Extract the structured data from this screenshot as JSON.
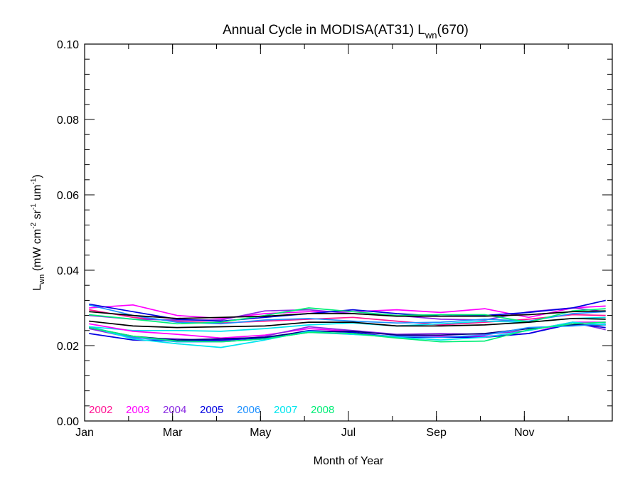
{
  "chart_data": {
    "type": "line",
    "title": "Annual Cycle in MODISA(AT31) L",
    "title_sub": "wn",
    "title_suffix": "(670)",
    "xlabel": "Month of Year",
    "ylabel_parts": [
      "L",
      "wn",
      " (mW cm",
      "-2",
      " sr",
      "-1",
      " um",
      "-1",
      ")"
    ],
    "xlim": [
      0,
      12
    ],
    "ylim": [
      0,
      0.1
    ],
    "x_ticks": [
      {
        "value": 0,
        "label": "Jan"
      },
      {
        "value": 2,
        "label": "Mar"
      },
      {
        "value": 4,
        "label": "May"
      },
      {
        "value": 6,
        "label": "Jul"
      },
      {
        "value": 8,
        "label": "Sep"
      },
      {
        "value": 10,
        "label": "Nov"
      }
    ],
    "y_ticks": [
      {
        "value": 0.0,
        "label": "0.00"
      },
      {
        "value": 0.02,
        "label": "0.02"
      },
      {
        "value": 0.04,
        "label": "0.04"
      },
      {
        "value": 0.06,
        "label": "0.06"
      },
      {
        "value": 0.08,
        "label": "0.08"
      },
      {
        "value": 0.1,
        "label": "0.10"
      }
    ],
    "grid": false,
    "legend_position": "bottom-left",
    "x": [
      0.1,
      1.1,
      2.1,
      3.1,
      4.1,
      5.1,
      6.1,
      7.1,
      8.1,
      9.1,
      10.1,
      11.1,
      11.85
    ],
    "series": [
      {
        "name": "2002",
        "color": "#ff1493",
        "values": [
          0.0295,
          0.0275,
          0.0265,
          0.026,
          0.0265,
          0.027,
          0.0275,
          0.0265,
          0.0255,
          0.0262,
          0.027,
          0.0282,
          0.028
        ]
      },
      {
        "name": "2003",
        "color": "#ff00ff",
        "values": [
          0.03,
          0.0308,
          0.028,
          0.0272,
          0.0285,
          0.029,
          0.029,
          0.0295,
          0.0288,
          0.0298,
          0.0275,
          0.03,
          0.0305
        ]
      },
      {
        "name": "2004",
        "color": "#8a2be2",
        "values": [
          0.028,
          0.027,
          0.0268,
          0.0268,
          0.0292,
          0.0295,
          0.0285,
          0.028,
          0.027,
          0.0268,
          0.029,
          0.03,
          0.029
        ]
      },
      {
        "name": "2005",
        "color": "#0000e0",
        "values": [
          0.031,
          0.029,
          0.027,
          0.0265,
          0.0275,
          0.0285,
          0.0295,
          0.0285,
          0.0278,
          0.028,
          0.0288,
          0.03,
          0.032
        ]
      },
      {
        "name": "2006",
        "color": "#1e90ff",
        "values": [
          0.0308,
          0.028,
          0.0262,
          0.0258,
          0.0268,
          0.0272,
          0.0265,
          0.026,
          0.0262,
          0.027,
          0.0265,
          0.0285,
          0.029
        ]
      },
      {
        "name": "2007",
        "color": "#00e5ee",
        "values": [
          0.025,
          0.024,
          0.024,
          0.0238,
          0.0245,
          0.0255,
          0.026,
          0.0252,
          0.0258,
          0.0265,
          0.0262,
          0.0272,
          0.0275
        ]
      },
      {
        "name": "2008",
        "color": "#00ee76",
        "values": [
          0.0282,
          0.027,
          0.0258,
          0.0262,
          0.028,
          0.03,
          0.029,
          0.028,
          0.0282,
          0.0282,
          0.0262,
          0.0292,
          0.0298
        ]
      },
      {
        "name": "",
        "color": "#ff00ff",
        "values": [
          0.0258,
          0.0238,
          0.023,
          0.022,
          0.0228,
          0.0245,
          0.0238,
          0.0228,
          0.0225,
          0.0225,
          0.0232,
          0.0262,
          0.0262
        ]
      },
      {
        "name": "",
        "color": "#8a2be2",
        "values": [
          0.0245,
          0.022,
          0.0218,
          0.0212,
          0.0225,
          0.025,
          0.024,
          0.023,
          0.0232,
          0.023,
          0.024,
          0.0262,
          0.0242
        ]
      },
      {
        "name": "",
        "color": "#0000e0",
        "values": [
          0.0232,
          0.0215,
          0.0212,
          0.0215,
          0.022,
          0.024,
          0.0235,
          0.0222,
          0.0222,
          0.0222,
          0.0232,
          0.0258,
          0.0248
        ]
      },
      {
        "name": "",
        "color": "#000080",
        "values": [
          0.0248,
          0.0225,
          0.0215,
          0.0218,
          0.0222,
          0.0238,
          0.0238,
          0.0228,
          0.0228,
          0.0232,
          0.0245,
          0.0255,
          0.0255
        ]
      },
      {
        "name": "",
        "color": "#1e90ff",
        "values": [
          0.025,
          0.0222,
          0.021,
          0.021,
          0.0218,
          0.0235,
          0.023,
          0.0225,
          0.0222,
          0.0228,
          0.0248,
          0.0252,
          0.0258
        ]
      },
      {
        "name": "",
        "color": "#00e5ee",
        "values": [
          0.025,
          0.0218,
          0.0205,
          0.0195,
          0.0215,
          0.0238,
          0.023,
          0.0222,
          0.0215,
          0.0222,
          0.024,
          0.0262,
          0.0255
        ]
      },
      {
        "name": "",
        "color": "#00ee76",
        "values": [
          0.0248,
          0.0225,
          0.0212,
          0.021,
          0.0218,
          0.0235,
          0.0232,
          0.022,
          0.021,
          0.0212,
          0.0242,
          0.0258,
          0.0262
        ]
      },
      {
        "name": "",
        "color": "#000000",
        "values": [
          0.0265,
          0.0252,
          0.0248,
          0.025,
          0.0252,
          0.0262,
          0.0262,
          0.0252,
          0.0252,
          0.0255,
          0.0262,
          0.0272,
          0.027
        ]
      },
      {
        "name": "",
        "color": "#000000",
        "values": [
          0.029,
          0.028,
          0.0272,
          0.0275,
          0.0278,
          0.0285,
          0.0285,
          0.0278,
          0.0278,
          0.0278,
          0.0282,
          0.029,
          0.0292
        ]
      }
    ]
  }
}
